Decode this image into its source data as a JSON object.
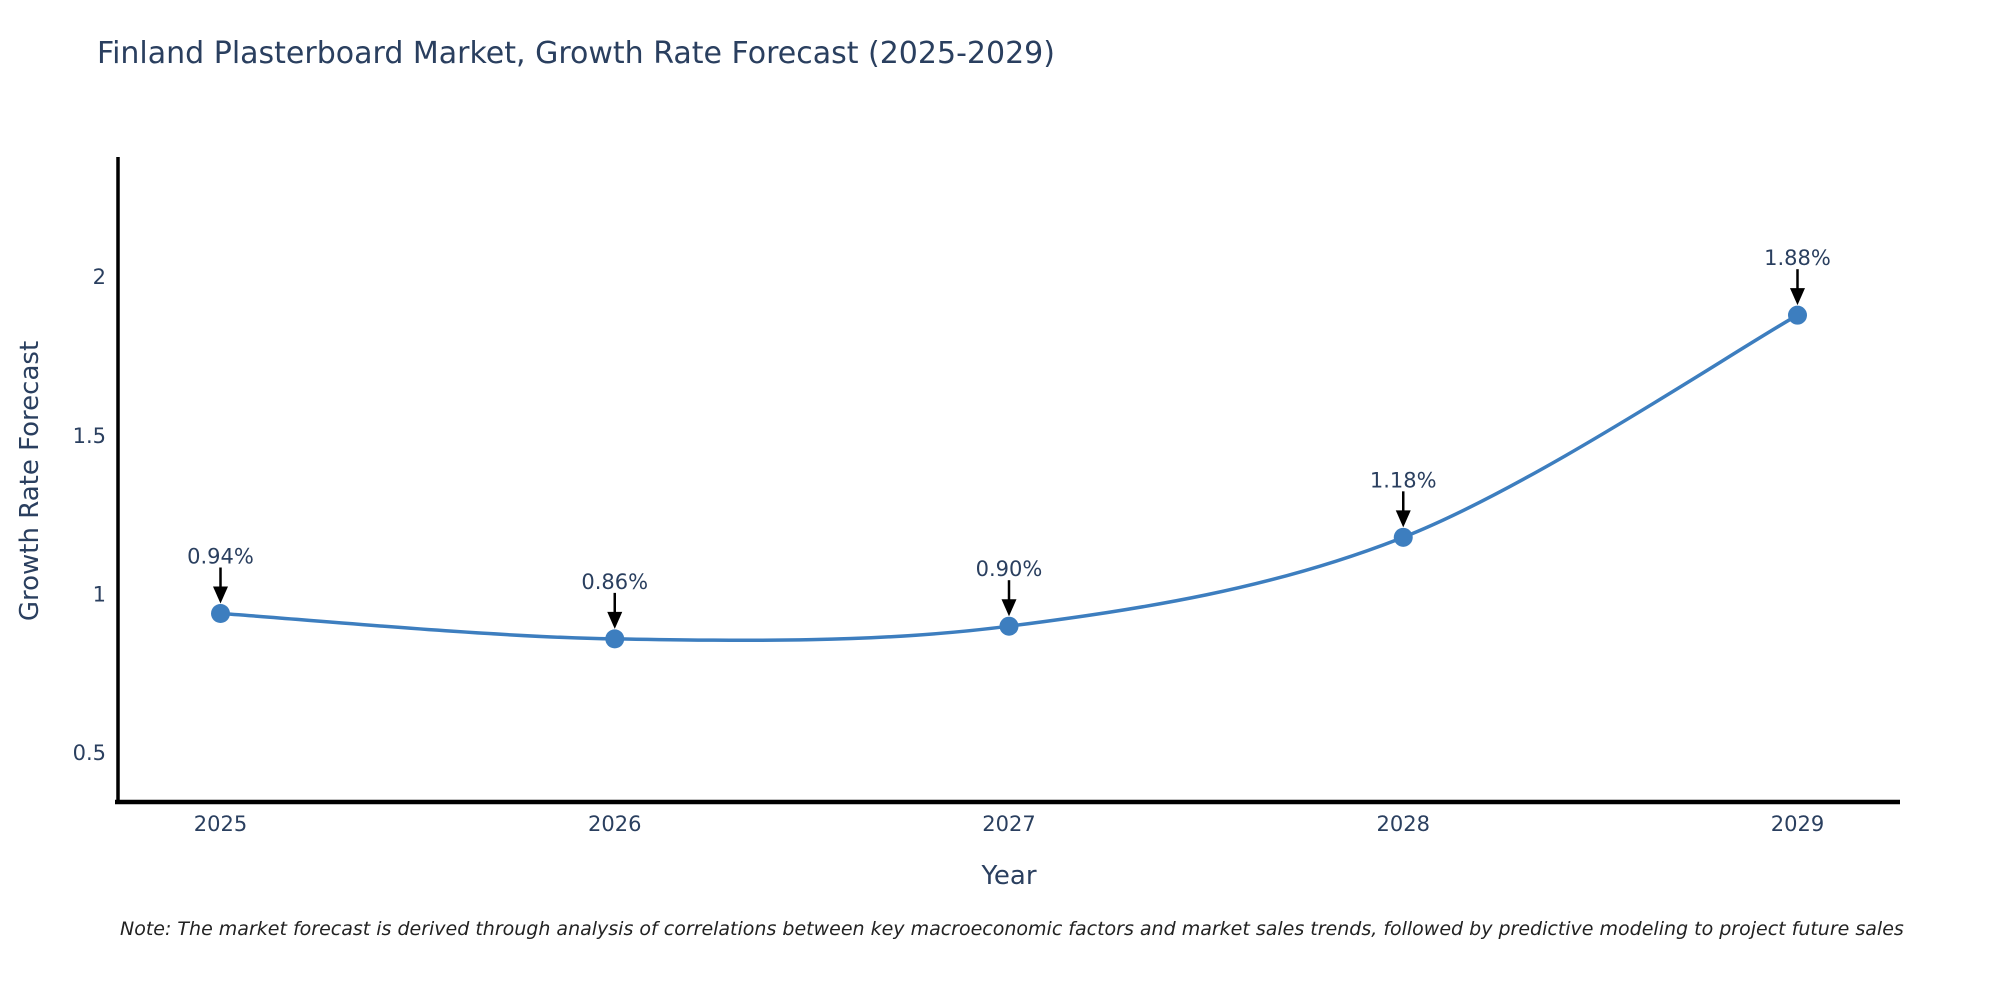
{
  "note": "Note: The market forecast is derived through analysis of correlations between key macroeconomic factors and market sales trends, followed by predictive modeling to project future sales",
  "chart_data": {
    "type": "line",
    "title": "Finland Plasterboard Market, Growth Rate Forecast (2025-2029)",
    "xlabel": "Year",
    "ylabel": "Growth Rate Forecast",
    "x": [
      2025,
      2026,
      2027,
      2028,
      2029
    ],
    "xtick_labels": [
      "2025",
      "2026",
      "2027",
      "2028",
      "2029"
    ],
    "series": [
      {
        "name": "Growth Rate Forecast",
        "values": [
          0.94,
          0.86,
          0.9,
          1.18,
          1.88
        ],
        "point_labels": [
          "0.94%",
          "0.86%",
          "0.90%",
          "1.18%",
          "1.88%"
        ]
      }
    ],
    "yticks": [
      0.5,
      1,
      1.5,
      2
    ],
    "ytick_labels": [
      "0.5",
      "1",
      "1.5",
      "2"
    ],
    "xlim": [
      2024.74,
      2029.26
    ],
    "ylim": [
      0.346,
      2.369
    ],
    "grid": false,
    "legend": false,
    "line_shape": "spline",
    "annotation_arrows": true,
    "colors": {
      "line": "#3d7ebf",
      "marker": "#3d7ebf",
      "arrow": "#000000",
      "axis": "#000000",
      "chart_text": "#2a3f5f",
      "annotation_text": "#2a3f5f",
      "note_text": "#222222",
      "background": "#ffffff"
    }
  }
}
